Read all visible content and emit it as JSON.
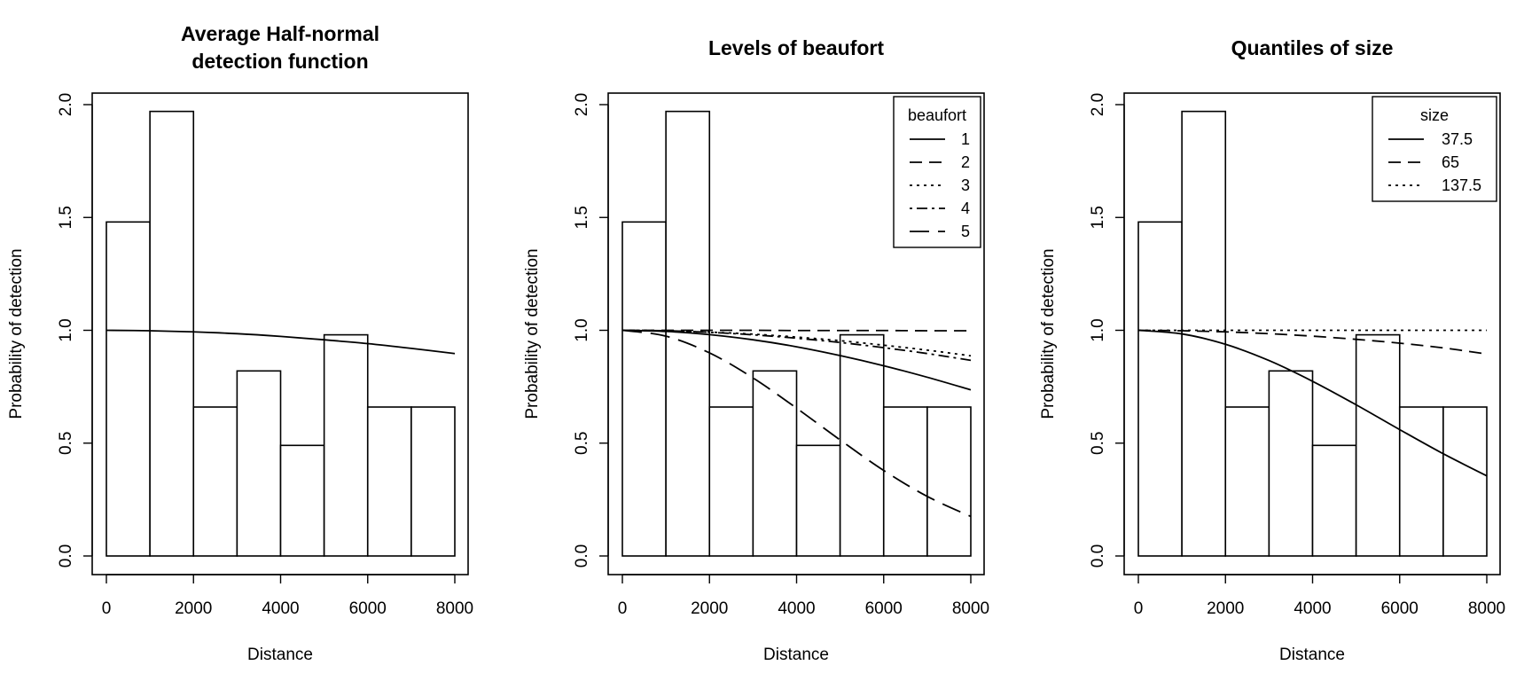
{
  "chart_data": [
    {
      "type": "histogram+line",
      "title_lines": [
        "Average Half-normal",
        "detection function"
      ],
      "xlabel": "Distance",
      "ylabel": "Probability of detection",
      "xlim": [
        0,
        8000
      ],
      "ylim": [
        0,
        2.0
      ],
      "xticks": [
        "0",
        "2000",
        "4000",
        "6000",
        "8000"
      ],
      "yticks": [
        "0.0",
        "0.5",
        "1.0",
        "1.5",
        "2.0"
      ],
      "bins": [
        0,
        1000,
        2000,
        3000,
        4000,
        5000,
        6000,
        7000,
        8000
      ],
      "bar_heights": [
        1.48,
        1.97,
        0.66,
        0.82,
        0.49,
        0.98,
        0.66,
        0.66
      ],
      "legend": null,
      "series": [
        {
          "style": "solid",
          "x": [
            0,
            1000,
            2000,
            3000,
            4000,
            5000,
            6000,
            7000,
            8000
          ],
          "y": [
            1.0,
            0.998,
            0.993,
            0.985,
            0.973,
            0.958,
            0.941,
            0.92,
            0.897
          ]
        }
      ]
    },
    {
      "type": "histogram+line",
      "title_lines": [
        "Levels of beaufort"
      ],
      "xlabel": "Distance",
      "ylabel": "Probability of detection",
      "xlim": [
        0,
        8000
      ],
      "ylim": [
        0,
        2.0
      ],
      "xticks": [
        "0",
        "2000",
        "4000",
        "6000",
        "8000"
      ],
      "yticks": [
        "0.0",
        "0.5",
        "1.0",
        "1.5",
        "2.0"
      ],
      "bins": [
        0,
        1000,
        2000,
        3000,
        4000,
        5000,
        6000,
        7000,
        8000
      ],
      "bar_heights": [
        1.48,
        1.97,
        0.66,
        0.82,
        0.49,
        0.98,
        0.66,
        0.66
      ],
      "legend": {
        "title": "beaufort",
        "position": "top-right",
        "labels": [
          "1",
          "2",
          "3",
          "4",
          "5"
        ]
      },
      "series": [
        {
          "name": "1",
          "style": "solid",
          "x": [
            0,
            1000,
            2000,
            3000,
            4000,
            5000,
            6000,
            7000,
            8000
          ],
          "y": [
            1.0,
            0.995,
            0.981,
            0.958,
            0.927,
            0.888,
            0.843,
            0.792,
            0.736
          ]
        },
        {
          "name": "2",
          "style": "dashed",
          "x": [
            0,
            1000,
            2000,
            3000,
            4000,
            5000,
            6000,
            7000,
            8000
          ],
          "y": [
            1.0,
            1.0,
            1.0,
            1.0,
            0.999,
            0.999,
            0.999,
            0.998,
            0.998
          ]
        },
        {
          "name": "3",
          "style": "dotted",
          "x": [
            0,
            1000,
            2000,
            3000,
            4000,
            5000,
            6000,
            7000,
            8000
          ],
          "y": [
            1.0,
            0.998,
            0.992,
            0.983,
            0.97,
            0.954,
            0.934,
            0.912,
            0.887
          ]
        },
        {
          "name": "4",
          "style": "dotdash",
          "x": [
            0,
            1000,
            2000,
            3000,
            4000,
            5000,
            6000,
            7000,
            8000
          ],
          "y": [
            1.0,
            0.998,
            0.991,
            0.98,
            0.965,
            0.946,
            0.923,
            0.897,
            0.867
          ]
        },
        {
          "name": "5",
          "style": "longdash",
          "x": [
            0,
            1000,
            2000,
            3000,
            4000,
            5000,
            6000,
            7000,
            8000
          ],
          "y": [
            1.0,
            0.974,
            0.9,
            0.789,
            0.655,
            0.514,
            0.379,
            0.264,
            0.175
          ]
        }
      ]
    },
    {
      "type": "histogram+line",
      "title_lines": [
        "Quantiles of size"
      ],
      "xlabel": "Distance",
      "ylabel": "Probability of detection",
      "xlim": [
        0,
        8000
      ],
      "ylim": [
        0,
        2.0
      ],
      "xticks": [
        "0",
        "2000",
        "4000",
        "6000",
        "8000"
      ],
      "yticks": [
        "0.0",
        "0.5",
        "1.0",
        "1.5",
        "2.0"
      ],
      "bins": [
        0,
        1000,
        2000,
        3000,
        4000,
        5000,
        6000,
        7000,
        8000
      ],
      "bar_heights": [
        1.48,
        1.97,
        0.66,
        0.82,
        0.49,
        0.98,
        0.66,
        0.66
      ],
      "legend": {
        "title": "size",
        "position": "top-right",
        "labels": [
          "37.5",
          "65",
          "137.5"
        ]
      },
      "series": [
        {
          "name": "37.5",
          "style": "solid",
          "x": [
            0,
            1000,
            2000,
            3000,
            4000,
            5000,
            6000,
            7000,
            8000
          ],
          "y": [
            1.0,
            0.984,
            0.938,
            0.866,
            0.774,
            0.67,
            0.56,
            0.453,
            0.355
          ]
        },
        {
          "name": "65",
          "style": "dashed",
          "x": [
            0,
            1000,
            2000,
            3000,
            4000,
            5000,
            6000,
            7000,
            8000
          ],
          "y": [
            1.0,
            0.998,
            0.993,
            0.985,
            0.974,
            0.96,
            0.943,
            0.922,
            0.895
          ]
        },
        {
          "name": "137.5",
          "style": "dotted",
          "x": [
            0,
            1000,
            2000,
            3000,
            4000,
            5000,
            6000,
            7000,
            8000
          ],
          "y": [
            1.0,
            1.0,
            1.0,
            1.0,
            1.0,
            1.0,
            1.0,
            1.0,
            1.0
          ]
        }
      ]
    }
  ]
}
